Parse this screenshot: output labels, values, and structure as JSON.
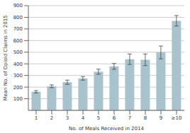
{
  "chart_data": {
    "type": "bar",
    "categories": [
      "1",
      "2",
      "3",
      "4",
      "5",
      "6",
      "7",
      "8",
      "9",
      "≥10"
    ],
    "values": [
      160,
      207,
      242,
      275,
      332,
      378,
      440,
      435,
      498,
      770
    ],
    "errors": [
      10,
      12,
      18,
      15,
      22,
      25,
      45,
      50,
      55,
      45
    ],
    "color": "#a8c3cb",
    "xlabel": "No. of Meals Received in 2014",
    "ylabel": "Mean No. of Opioid Claims in 2015",
    "ylim": [
      0,
      900
    ],
    "yticks": [
      100,
      200,
      300,
      400,
      500,
      600,
      700,
      800,
      900
    ],
    "grid": true
  }
}
